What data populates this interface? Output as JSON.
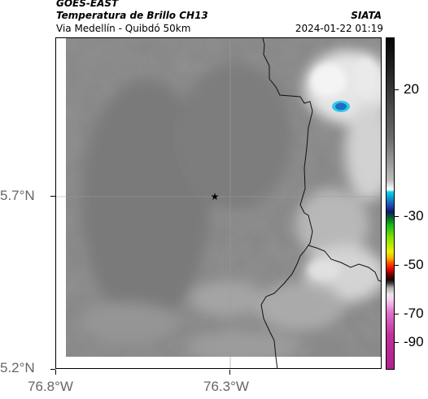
{
  "header": {
    "source": "GOES-EAST",
    "product": "Temperatura de Brillo CH13",
    "agency": "SIATA",
    "region": "Via Medellín - Quibdó 50km",
    "timestamp": "2024-01-22 01:19"
  },
  "map": {
    "lat_labels": [
      "5.7°N",
      "5.2°N"
    ],
    "lon_labels": [
      "76.8°W",
      "76.3°W"
    ],
    "marker": "star-marker"
  },
  "colorbar": {
    "labels": [
      "20",
      "-30",
      "-50",
      "-70",
      "-90"
    ]
  }
}
